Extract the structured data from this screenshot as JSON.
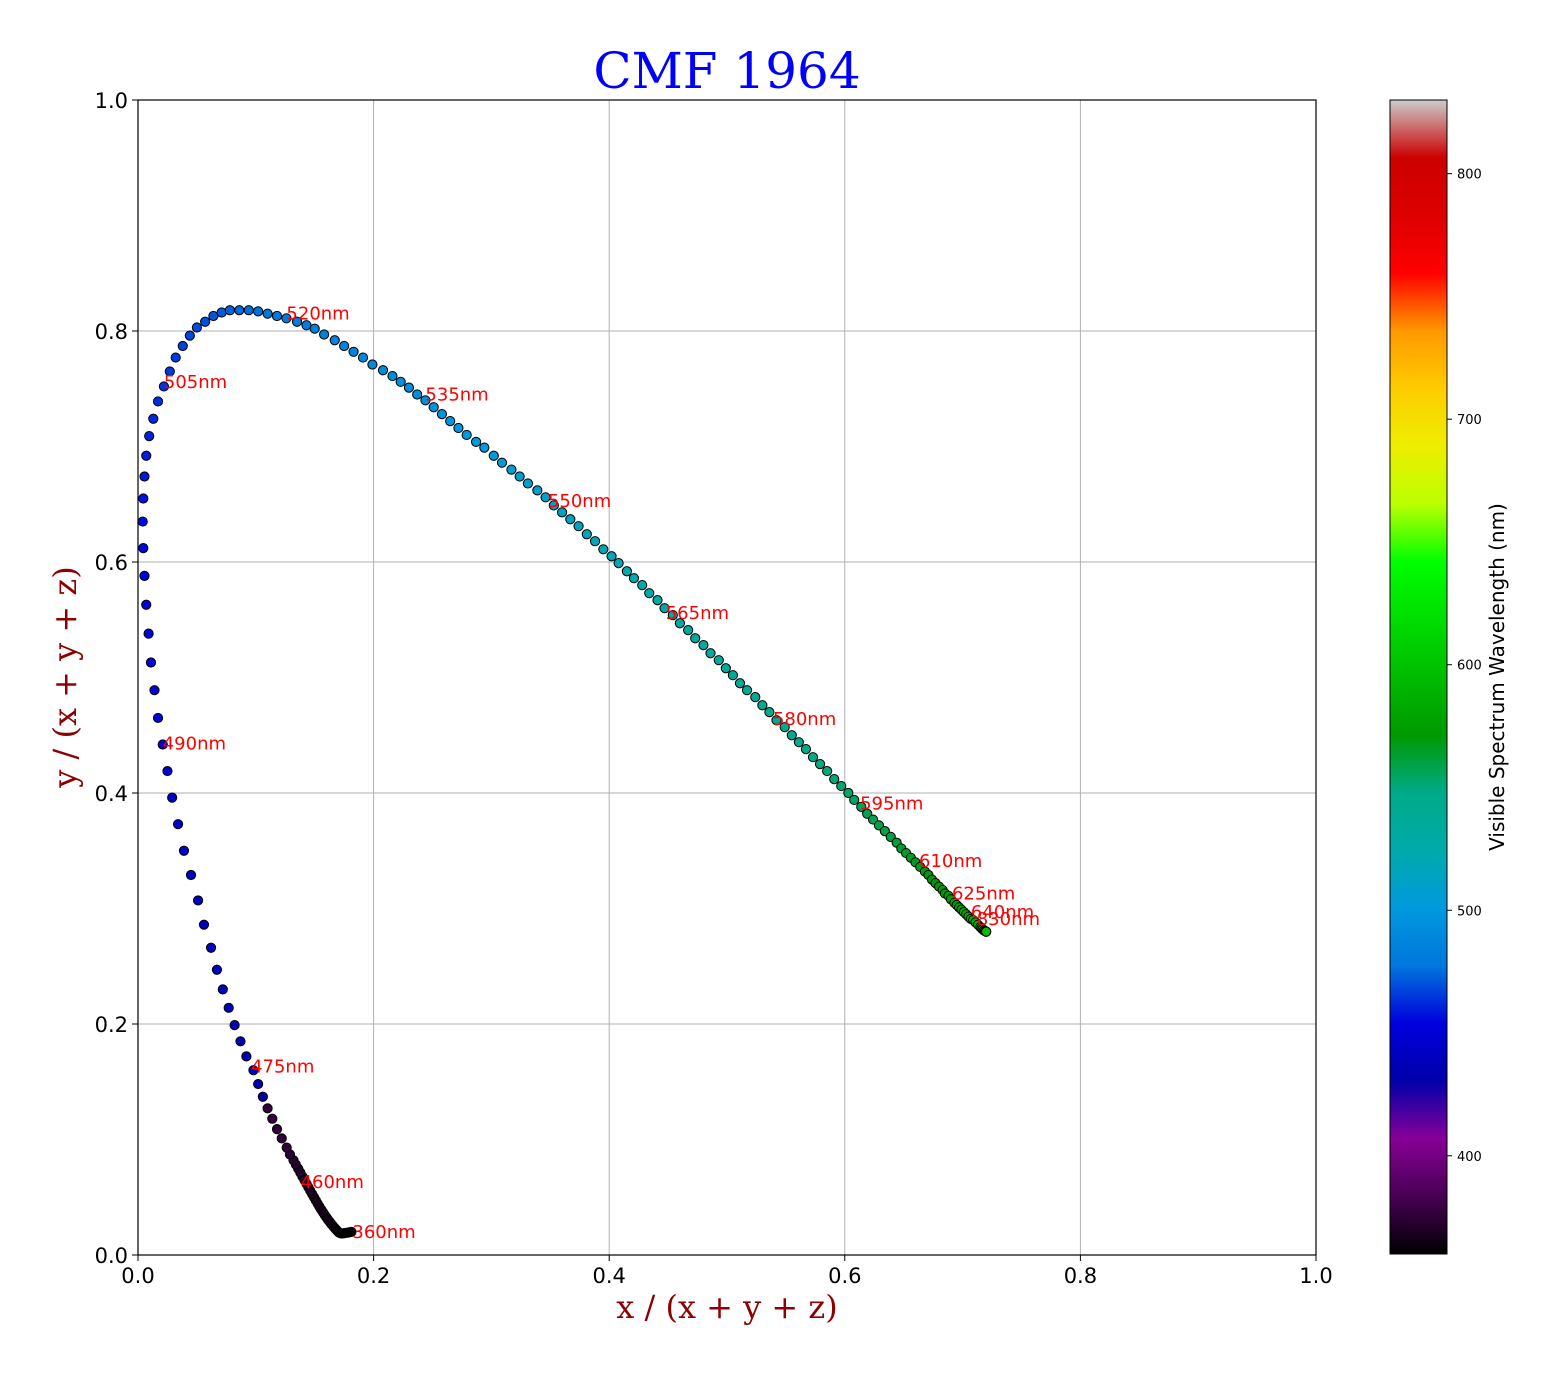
{
  "chart_data": {
    "type": "scatter",
    "title": "CMF 1964",
    "xlabel": "x / (x + y + z)",
    "ylabel": "y / (x + y + z)",
    "xlim": [
      0.0,
      1.0
    ],
    "ylim": [
      0.0,
      1.0
    ],
    "grid": true,
    "xticks": [
      "0.0",
      "0.2",
      "0.4",
      "0.6",
      "0.8",
      "1.0"
    ],
    "yticks": [
      "0.0",
      "0.2",
      "0.4",
      "0.6",
      "0.8",
      "1.0"
    ],
    "colorbar": {
      "label": "Visible Spectrum Wavelength (nm)",
      "range": [
        360,
        830
      ],
      "ticks": [
        "400",
        "500",
        "600",
        "700",
        "800"
      ]
    },
    "series": [
      {
        "points": [
          [
            0.1812,
            0.02
          ],
          [
            0.1796,
            0.0197
          ],
          [
            0.178,
            0.0194
          ],
          [
            0.1763,
            0.0191
          ],
          [
            0.1747,
            0.0188
          ],
          [
            0.173,
            0.0186
          ],
          [
            0.1717,
            0.0189
          ],
          [
            0.1706,
            0.0195
          ],
          [
            0.1696,
            0.0205
          ],
          [
            0.1684,
            0.0218
          ],
          [
            0.1671,
            0.0232
          ],
          [
            0.1657,
            0.0249
          ],
          [
            0.1643,
            0.0266
          ],
          [
            0.1629,
            0.0285
          ],
          [
            0.1614,
            0.0304
          ],
          [
            0.16,
            0.0325
          ],
          [
            0.1585,
            0.0347
          ],
          [
            0.157,
            0.037
          ],
          [
            0.1555,
            0.0394
          ],
          [
            0.154,
            0.0419
          ],
          [
            0.1525,
            0.0445
          ],
          [
            0.151,
            0.0472
          ],
          [
            0.1494,
            0.05
          ],
          [
            0.1478,
            0.0528
          ],
          [
            0.1462,
            0.0557
          ],
          [
            0.1446,
            0.0587
          ],
          [
            0.143,
            0.0617
          ],
          [
            0.1413,
            0.0648
          ],
          [
            0.1396,
            0.068
          ],
          [
            0.1378,
            0.0713
          ],
          [
            0.136,
            0.0747
          ],
          [
            0.134,
            0.0783
          ],
          [
            0.132,
            0.082
          ],
          [
            0.129,
            0.087
          ],
          [
            0.1262,
            0.093
          ],
          [
            0.122,
            0.101
          ],
          [
            0.118,
            0.109
          ],
          [
            0.114,
            0.118
          ],
          [
            0.11,
            0.127
          ],
          [
            0.106,
            0.137
          ],
          [
            0.102,
            0.148
          ],
          [
            0.098,
            0.16
          ],
          [
            0.092,
            0.172
          ],
          [
            0.087,
            0.185
          ],
          [
            0.082,
            0.199
          ],
          [
            0.077,
            0.214
          ],
          [
            0.072,
            0.23
          ],
          [
            0.067,
            0.247
          ],
          [
            0.062,
            0.266
          ],
          [
            0.056,
            0.286
          ],
          [
            0.051,
            0.307
          ],
          [
            0.045,
            0.329
          ],
          [
            0.039,
            0.35
          ],
          [
            0.034,
            0.373
          ],
          [
            0.029,
            0.396
          ],
          [
            0.025,
            0.419
          ],
          [
            0.021,
            0.442
          ],
          [
            0.017,
            0.465
          ],
          [
            0.014,
            0.489
          ],
          [
            0.011,
            0.513
          ],
          [
            0.009,
            0.538
          ],
          [
            0.007,
            0.563
          ],
          [
            0.0055,
            0.588
          ],
          [
            0.0045,
            0.612
          ],
          [
            0.004,
            0.635
          ],
          [
            0.0045,
            0.655
          ],
          [
            0.0055,
            0.674
          ],
          [
            0.007,
            0.692
          ],
          [
            0.0095,
            0.709
          ],
          [
            0.013,
            0.724
          ],
          [
            0.017,
            0.739
          ],
          [
            0.022,
            0.752
          ],
          [
            0.027,
            0.765
          ],
          [
            0.032,
            0.777
          ],
          [
            0.038,
            0.787
          ],
          [
            0.044,
            0.796
          ],
          [
            0.05,
            0.803
          ],
          [
            0.057,
            0.808
          ],
          [
            0.064,
            0.813
          ],
          [
            0.071,
            0.816
          ],
          [
            0.078,
            0.818
          ],
          [
            0.086,
            0.818
          ],
          [
            0.094,
            0.818
          ],
          [
            0.102,
            0.817
          ],
          [
            0.11,
            0.815
          ],
          [
            0.118,
            0.813
          ],
          [
            0.126,
            0.811
          ],
          [
            0.135,
            0.808
          ],
          [
            0.143,
            0.805
          ],
          [
            0.15,
            0.802
          ],
          [
            0.158,
            0.797
          ],
          [
            0.167,
            0.792
          ],
          [
            0.175,
            0.787
          ],
          [
            0.183,
            0.782
          ],
          [
            0.191,
            0.777
          ],
          [
            0.199,
            0.771
          ],
          [
            0.208,
            0.766
          ],
          [
            0.216,
            0.761
          ],
          [
            0.223,
            0.756
          ],
          [
            0.23,
            0.751
          ],
          [
            0.237,
            0.745
          ],
          [
            0.244,
            0.74
          ],
          [
            0.251,
            0.734
          ],
          [
            0.258,
            0.728
          ],
          [
            0.265,
            0.722
          ],
          [
            0.272,
            0.716
          ],
          [
            0.279,
            0.71
          ],
          [
            0.287,
            0.704
          ],
          [
            0.294,
            0.699
          ],
          [
            0.302,
            0.692
          ],
          [
            0.309,
            0.686
          ],
          [
            0.317,
            0.68
          ],
          [
            0.324,
            0.674
          ],
          [
            0.331,
            0.668
          ],
          [
            0.339,
            0.662
          ],
          [
            0.346,
            0.656
          ],
          [
            0.353,
            0.649
          ],
          [
            0.36,
            0.643
          ],
          [
            0.367,
            0.637
          ],
          [
            0.374,
            0.631
          ],
          [
            0.381,
            0.624
          ],
          [
            0.388,
            0.618
          ],
          [
            0.395,
            0.611
          ],
          [
            0.402,
            0.605
          ],
          [
            0.408,
            0.599
          ],
          [
            0.415,
            0.592
          ],
          [
            0.421,
            0.586
          ],
          [
            0.428,
            0.58
          ],
          [
            0.434,
            0.573
          ],
          [
            0.441,
            0.567
          ],
          [
            0.447,
            0.56
          ],
          [
            0.454,
            0.554
          ],
          [
            0.46,
            0.547
          ],
          [
            0.467,
            0.541
          ],
          [
            0.473,
            0.534
          ],
          [
            0.48,
            0.528
          ],
          [
            0.486,
            0.521
          ],
          [
            0.493,
            0.515
          ],
          [
            0.499,
            0.508
          ],
          [
            0.505,
            0.502
          ],
          [
            0.511,
            0.495
          ],
          [
            0.517,
            0.489
          ],
          [
            0.524,
            0.483
          ],
          [
            0.53,
            0.476
          ],
          [
            0.536,
            0.47
          ],
          [
            0.542,
            0.463
          ],
          [
            0.549,
            0.457
          ],
          [
            0.555,
            0.45
          ],
          [
            0.561,
            0.444
          ],
          [
            0.567,
            0.438
          ],
          [
            0.573,
            0.431
          ],
          [
            0.579,
            0.425
          ],
          [
            0.585,
            0.419
          ],
          [
            0.591,
            0.412
          ],
          [
            0.597,
            0.406
          ],
          [
            0.603,
            0.4
          ],
          [
            0.608,
            0.394
          ],
          [
            0.614,
            0.388
          ],
          [
            0.619,
            0.382
          ],
          [
            0.624,
            0.377
          ],
          [
            0.629,
            0.372
          ],
          [
            0.634,
            0.367
          ],
          [
            0.639,
            0.362
          ],
          [
            0.644,
            0.357
          ],
          [
            0.648,
            0.352
          ],
          [
            0.652,
            0.348
          ],
          [
            0.656,
            0.344
          ],
          [
            0.66,
            0.34
          ],
          [
            0.664,
            0.336
          ],
          [
            0.668,
            0.332
          ],
          [
            0.671,
            0.329
          ],
          [
            0.674,
            0.325
          ],
          [
            0.677,
            0.322
          ],
          [
            0.68,
            0.319
          ],
          [
            0.683,
            0.316
          ],
          [
            0.685,
            0.313
          ],
          [
            0.688,
            0.311
          ],
          [
            0.69,
            0.308
          ],
          [
            0.693,
            0.305
          ],
          [
            0.695,
            0.303
          ],
          [
            0.697,
            0.301
          ],
          [
            0.699,
            0.299
          ],
          [
            0.701,
            0.297
          ],
          [
            0.703,
            0.295
          ],
          [
            0.705,
            0.293
          ],
          [
            0.707,
            0.291
          ],
          [
            0.709,
            0.29
          ],
          [
            0.711,
            0.288
          ],
          [
            0.713,
            0.286
          ],
          [
            0.715,
            0.284
          ],
          [
            0.716,
            0.283
          ],
          [
            0.717,
            0.282
          ],
          [
            0.718,
            0.281
          ],
          [
            0.719,
            0.2805
          ],
          [
            0.7195,
            0.2802
          ],
          [
            0.72,
            0.28
          ],
          [
            0.72,
            0.28
          ],
          [
            0.72,
            0.28
          ]
        ]
      }
    ],
    "annotations": [
      {
        "text": "360nm",
        "x": 0.182,
        "y": 0.02
      },
      {
        "text": "460nm",
        "x": 0.138,
        "y": 0.063
      },
      {
        "text": "475nm",
        "x": 0.096,
        "y": 0.163
      },
      {
        "text": "490nm",
        "x": 0.021,
        "y": 0.443
      },
      {
        "text": "505nm",
        "x": 0.022,
        "y": 0.756
      },
      {
        "text": "520nm",
        "x": 0.126,
        "y": 0.815
      },
      {
        "text": "535nm",
        "x": 0.244,
        "y": 0.745
      },
      {
        "text": "550nm",
        "x": 0.348,
        "y": 0.653
      },
      {
        "text": "565nm",
        "x": 0.448,
        "y": 0.556
      },
      {
        "text": "580nm",
        "x": 0.539,
        "y": 0.464
      },
      {
        "text": "595nm",
        "x": 0.613,
        "y": 0.391
      },
      {
        "text": "610nm",
        "x": 0.663,
        "y": 0.341
      },
      {
        "text": "625nm",
        "x": 0.691,
        "y": 0.313
      },
      {
        "text": "640nm",
        "x": 0.707,
        "y": 0.297
      },
      {
        "text": "830nm",
        "x": 0.712,
        "y": 0.291
      }
    ]
  }
}
